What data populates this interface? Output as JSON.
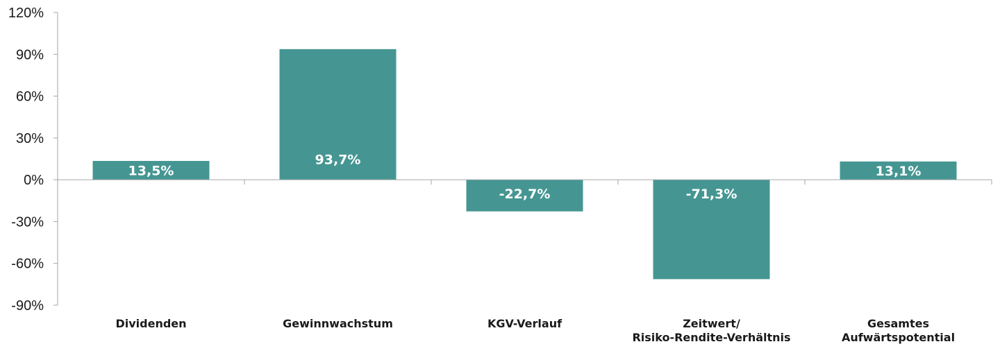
{
  "chart_data": {
    "type": "bar",
    "categories": [
      [
        "Dividenden"
      ],
      [
        "Gewinnwachstum"
      ],
      [
        "KGV-Verlauf"
      ],
      [
        "Zeitwert/",
        "Risiko-Rendite-Verhältnis"
      ],
      [
        "Gesamtes",
        "Aufwärtspotential"
      ]
    ],
    "values": [
      13.5,
      93.7,
      -22.7,
      -71.3,
      13.1
    ],
    "data_labels": [
      "13,5%",
      "93,7%",
      "-22,7%",
      "-71,3%",
      "13,1%"
    ],
    "ylim": [
      -90,
      120
    ],
    "yticks": [
      120,
      90,
      60,
      30,
      0,
      -30,
      -60,
      -90
    ],
    "ytick_labels": [
      "120%",
      "90%",
      "60%",
      "30%",
      "0%",
      "-30%",
      "-60%",
      "-90%"
    ],
    "xlabel": "",
    "ylabel": "",
    "grid": false,
    "colors": {
      "bar": "#459692",
      "axis": "#a6a6a6",
      "text": "#1a1a1a",
      "label": "#ffffff"
    }
  }
}
